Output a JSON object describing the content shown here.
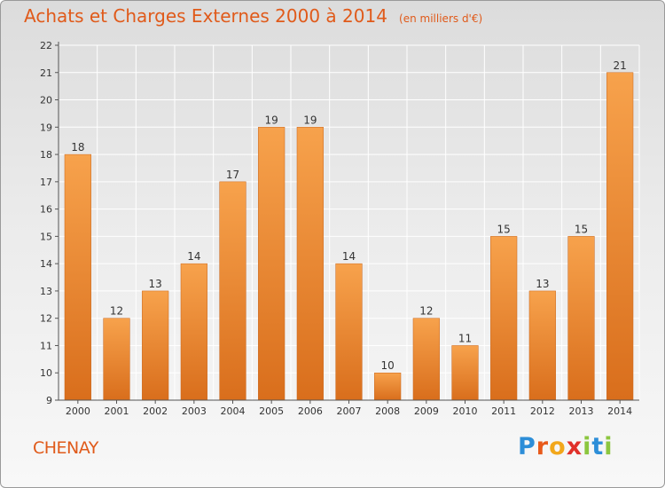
{
  "chart_data": {
    "type": "bar",
    "title": "Achats et Charges Externes 2000 à 2014",
    "subtitle": "(en milliers d'€)",
    "categories": [
      "2000",
      "2001",
      "2002",
      "2003",
      "2004",
      "2005",
      "2006",
      "2007",
      "2008",
      "2009",
      "2010",
      "2011",
      "2012",
      "2013",
      "2014"
    ],
    "values": [
      18,
      12,
      13,
      14,
      17,
      19,
      19,
      14,
      10,
      12,
      11,
      15,
      13,
      15,
      21
    ],
    "data_labels": [
      "18",
      "12",
      "13",
      "14",
      "17",
      "19",
      "19",
      "14",
      "10",
      "12",
      "11",
      "15",
      "13",
      "15",
      "21"
    ],
    "ylim": [
      9,
      22
    ],
    "yticks": [
      "9",
      "10",
      "11",
      "12",
      "13",
      "14",
      "15",
      "16",
      "17",
      "18",
      "19",
      "20",
      "21",
      "22"
    ],
    "grid": true,
    "bar_color": "#e8832e"
  },
  "footer": {
    "commune": "CHENAY",
    "logo_letters": [
      "P",
      "r",
      "o",
      "x",
      "i",
      "t",
      "i"
    ],
    "logo_colors": [
      "#2d8ed8",
      "#e85a1b",
      "#f2a71b",
      "#e0302a",
      "#8cc63f",
      "#2d8ed8",
      "#8cc63f"
    ]
  }
}
